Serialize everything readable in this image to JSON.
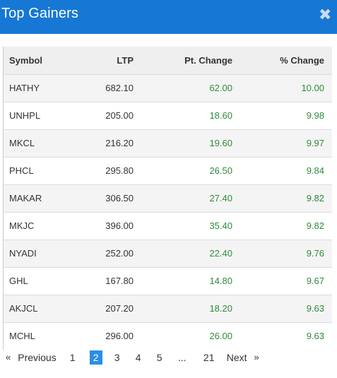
{
  "header": {
    "title": "Top Gainers",
    "close_icon": "close-icon"
  },
  "table": {
    "columns": [
      "Symbol",
      "LTP",
      "Pt. Change",
      "% Change"
    ],
    "rows": [
      [
        "HATHY",
        "682.10",
        "62.00",
        "10.00"
      ],
      [
        "UNHPL",
        "205.00",
        "18.60",
        "9.98"
      ],
      [
        "MKCL",
        "216.20",
        "19.60",
        "9.97"
      ],
      [
        "PHCL",
        "295.80",
        "26.50",
        "9.84"
      ],
      [
        "MAKAR",
        "306.50",
        "27.40",
        "9.82"
      ],
      [
        "MKJC",
        "396.00",
        "35.40",
        "9.82"
      ],
      [
        "NYADI",
        "252.00",
        "22.40",
        "9.76"
      ],
      [
        "GHL",
        "167.80",
        "14.80",
        "9.67"
      ],
      [
        "AKJCL",
        "207.20",
        "18.20",
        "9.63"
      ],
      [
        "MCHL",
        "296.00",
        "26.00",
        "9.63"
      ]
    ],
    "positive_color": "#2e8b3a"
  },
  "pagination": {
    "prev_arrow": "«",
    "prev_label": "Previous",
    "pages": [
      "1",
      "2",
      "3",
      "4",
      "5",
      "...",
      "21"
    ],
    "current": "2",
    "next_label": "Next",
    "next_arrow": "»"
  },
  "colors": {
    "accent": "#1678d4",
    "active_page": "#2b8ee6"
  }
}
